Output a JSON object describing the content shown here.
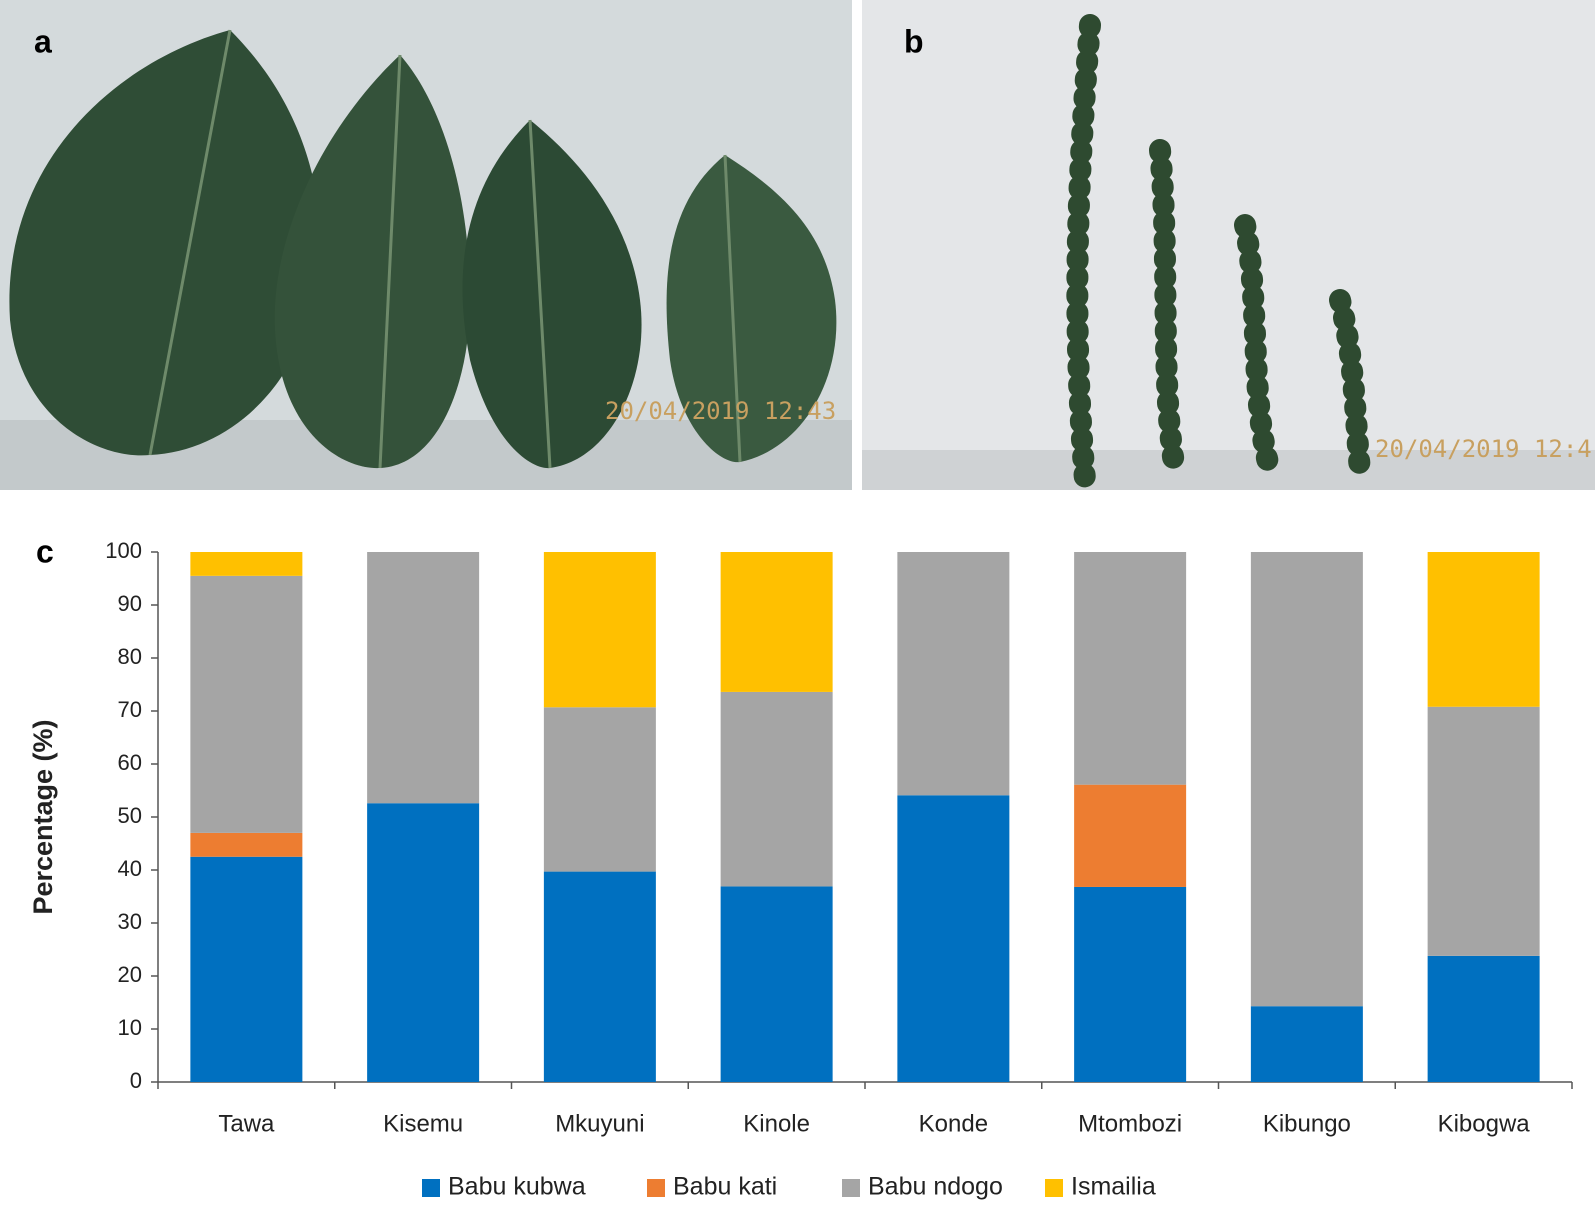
{
  "panels": [
    {
      "label": "a",
      "timestamp": "20/04/2019 12:43"
    },
    {
      "label": "b",
      "timestamp": "20/04/2019 12:4"
    }
  ],
  "chart_data": {
    "type": "stacked_bar",
    "panel_label": "c",
    "y_label": "Percentage (%)",
    "categories": [
      "Tawa",
      "Kisemu",
      "Mkuyuni",
      "Kinole",
      "Konde",
      "Mtombozi",
      "Kibungo",
      "Kibogwa"
    ],
    "series": [
      {
        "name": "Babu kubwa",
        "color": "#0070c0",
        "values": [
          42.5,
          52.6,
          39.7,
          36.9,
          54.1,
          36.8,
          14.3,
          23.8
        ]
      },
      {
        "name": "Babu kati",
        "color": "#ed7d31",
        "values": [
          4.5,
          0,
          0,
          0,
          0,
          19.3,
          0,
          0
        ]
      },
      {
        "name": "Babu ndogo",
        "color": "#a5a5a5",
        "values": [
          48.5,
          47.4,
          31,
          36.7,
          45.9,
          43.9,
          85.7,
          47
        ]
      },
      {
        "name": "Ismailia",
        "color": "#ffc000",
        "values": [
          4.5,
          0,
          29.3,
          26.4,
          0,
          0,
          0,
          29.2
        ]
      }
    ],
    "ylim": [
      0,
      100
    ],
    "yticks": [
      0,
      10,
      20,
      30,
      40,
      50,
      60,
      70,
      80,
      90,
      100
    ],
    "grid": false,
    "legend": "bottom"
  }
}
